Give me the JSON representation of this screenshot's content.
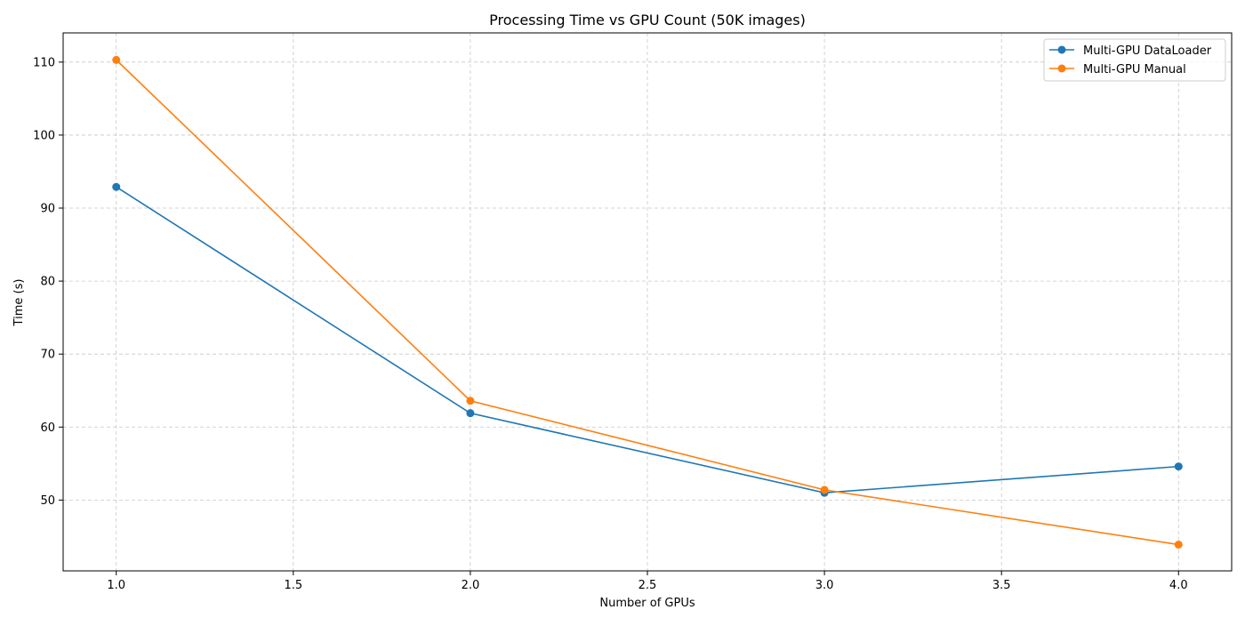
{
  "chart_data": {
    "type": "line",
    "title": "Processing Time vs GPU Count (50K images)",
    "xlabel": "Number of GPUs",
    "ylabel": "Time (s)",
    "x": [
      1.0,
      2.0,
      3.0,
      4.0
    ],
    "xlim": [
      0.85,
      4.15
    ],
    "ylim": [
      40.3,
      114.0
    ],
    "xticks": [
      "1.0",
      "1.5",
      "2.0",
      "2.5",
      "3.0",
      "3.5",
      "4.0"
    ],
    "yticks": [
      "50",
      "60",
      "70",
      "80",
      "90",
      "100",
      "110"
    ],
    "grid": true,
    "legend_position": "top-right",
    "series": [
      {
        "name": "Multi-GPU DataLoader",
        "color": "#1f77b4",
        "values": [
          92.9,
          61.9,
          51.0,
          54.6
        ]
      },
      {
        "name": "Multi-GPU Manual",
        "color": "#ff7f0e",
        "values": [
          110.3,
          63.6,
          51.4,
          43.9
        ]
      }
    ]
  }
}
